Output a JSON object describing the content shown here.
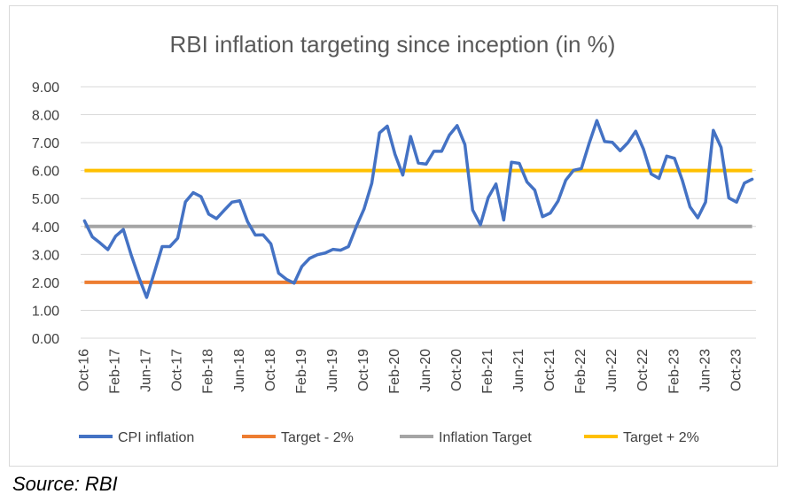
{
  "source_note": "Source: RBI",
  "chart_data": {
    "type": "line",
    "title": "RBI inflation targeting since inception (in %)",
    "xlabel": "",
    "ylabel": "",
    "ylim": [
      0,
      9
    ],
    "yticks": [
      "0.00",
      "1.00",
      "2.00",
      "3.00",
      "4.00",
      "5.00",
      "6.00",
      "7.00",
      "8.00",
      "9.00"
    ],
    "x_tick_labels": [
      "Oct-16",
      "Feb-17",
      "Jun-17",
      "Oct-17",
      "Feb-18",
      "Jun-18",
      "Oct-18",
      "Feb-19",
      "Jun-19",
      "Oct-19",
      "Feb-20",
      "Jun-20",
      "Oct-20",
      "Feb-21",
      "Jun-21",
      "Oct-21",
      "Feb-22",
      "Jun-22",
      "Oct-22",
      "Feb-23",
      "Jun-23",
      "Oct-23"
    ],
    "x_start": "Oct-16",
    "x_end": "Jan-24",
    "grid": "horizontal",
    "legend_position": "bottom",
    "series": [
      {
        "name": "CPI inflation",
        "color": "#4472c4",
        "values": [
          4.2,
          3.63,
          3.41,
          3.17,
          3.65,
          3.89,
          2.99,
          2.18,
          1.46,
          2.36,
          3.28,
          3.28,
          3.58,
          4.88,
          5.21,
          5.07,
          4.44,
          4.28,
          4.58,
          4.87,
          4.92,
          4.17,
          3.69,
          3.7,
          3.38,
          2.33,
          2.11,
          1.97,
          2.57,
          2.86,
          2.99,
          3.05,
          3.18,
          3.15,
          3.28,
          3.99,
          4.62,
          5.54,
          7.35,
          7.59,
          6.58,
          5.84,
          7.22,
          6.27,
          6.23,
          6.69,
          6.69,
          7.27,
          7.61,
          6.93,
          4.59,
          4.06,
          5.03,
          5.52,
          4.23,
          6.3,
          6.26,
          5.59,
          5.3,
          4.35,
          4.48,
          4.91,
          5.66,
          6.01,
          6.07,
          6.97,
          7.79,
          7.04,
          7.01,
          6.71,
          7.0,
          7.41,
          6.77,
          5.88,
          5.72,
          6.52,
          6.44,
          5.66,
          4.7,
          4.31,
          4.87,
          7.44,
          6.83,
          5.02,
          4.87,
          5.55,
          5.69
        ]
      },
      {
        "name": "Target - 2%",
        "color": "#ed7d31",
        "constant": 2.0
      },
      {
        "name": "Inflation Target",
        "color": "#a5a5a5",
        "constant": 4.0
      },
      {
        "name": "Target + 2%",
        "color": "#ffc000",
        "constant": 6.0
      }
    ]
  }
}
